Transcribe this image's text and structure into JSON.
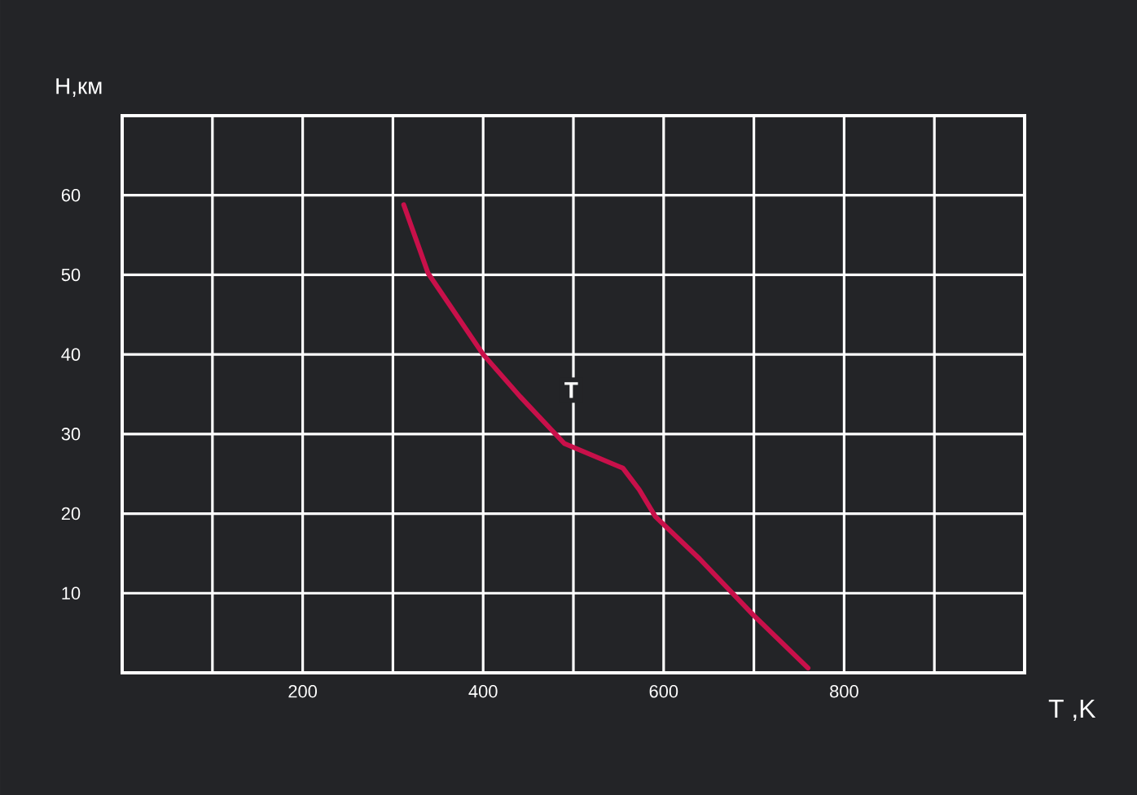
{
  "chart_data": {
    "type": "line",
    "xlabel": "T ,K",
    "ylabel": "H,км",
    "xlim": [
      0,
      1000
    ],
    "ylim": [
      0,
      70
    ],
    "xticks": [
      {
        "value": 0,
        "label": null
      },
      {
        "value": 100,
        "label": null
      },
      200,
      {
        "value": 300,
        "label": null
      },
      400,
      {
        "value": 500,
        "label": null
      },
      600,
      {
        "value": 700,
        "label": null
      },
      800,
      {
        "value": 900,
        "label": null
      },
      {
        "value": 1000,
        "label": null
      }
    ],
    "yticks": [
      {
        "value": 0,
        "label": null
      },
      10,
      20,
      30,
      40,
      50,
      60,
      {
        "value": 70,
        "label": null
      }
    ],
    "grid": true,
    "legend": false,
    "marker": "none",
    "line_style": "solid",
    "series": [
      {
        "name": "T",
        "color": "#c8104a",
        "x": [
          312,
          339,
          400,
          441,
          490,
          555,
          573,
          591,
          640,
          699,
          760
        ],
        "values": [
          58.8,
          50.2,
          40,
          34.7,
          28.8,
          25.7,
          23,
          19.6,
          14.3,
          7.3,
          0.6
        ]
      }
    ]
  }
}
